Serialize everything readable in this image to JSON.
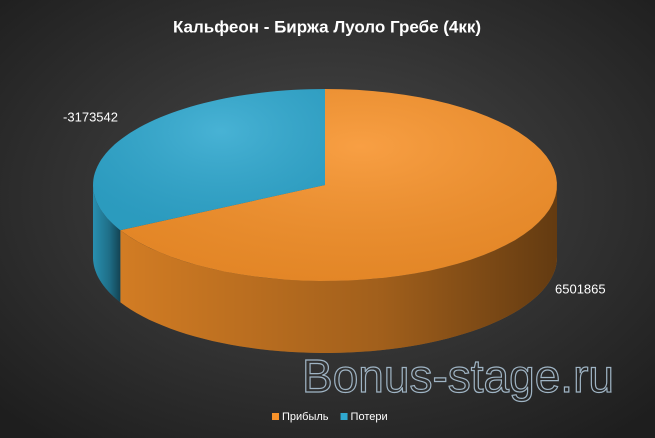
{
  "chart_data": {
    "type": "pie",
    "title": "Кальфеон - Биржа Луоло Гребе (4кк)",
    "categories": [
      "Прибыль",
      "Потери"
    ],
    "values": [
      6501865,
      -3173542
    ],
    "colors": [
      "#f7922a",
      "#2fa8cf"
    ],
    "legend": "bottom",
    "watermark": "Bonus-stage.ru"
  }
}
